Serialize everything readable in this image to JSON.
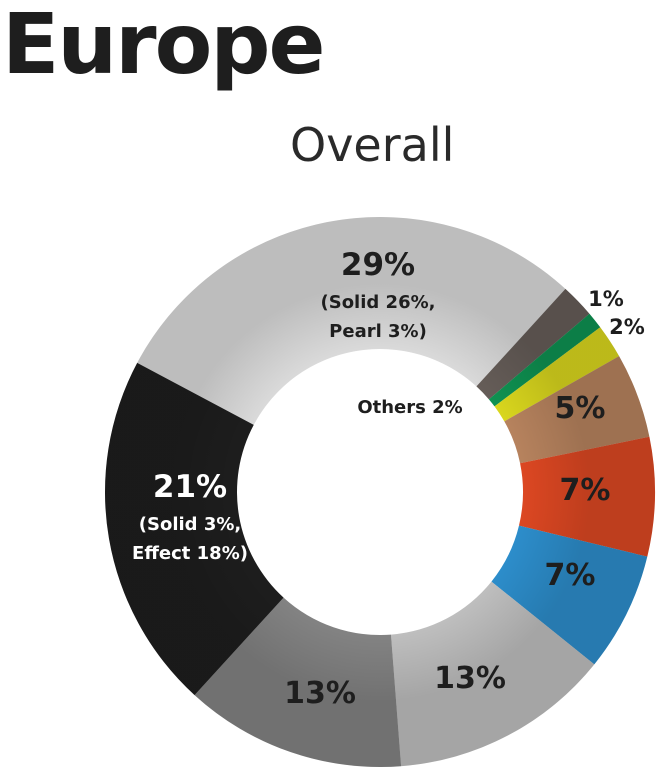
{
  "title": "Europe",
  "subtitle": "Overall",
  "chart_data": {
    "type": "pie",
    "title": "Europe",
    "subtitle": "Overall",
    "series": [
      {
        "label": "29%",
        "sublines": [
          "(Solid 26%,",
          "Pearl 3%)"
        ],
        "value": 29,
        "color": "#e6e6e6",
        "text_color": "#1e1e1e"
      },
      {
        "label": "Others 2%",
        "sublines": [],
        "value": 2,
        "color": "#6b625d",
        "text_color": "#1e1e1e"
      },
      {
        "label": "1%",
        "sublines": [],
        "value": 1,
        "color": "#0f9a56",
        "text_color": "#1e1e1e"
      },
      {
        "label": "2%",
        "sublines": [],
        "value": 2,
        "color": "#e5e21f",
        "text_color": "#1e1e1e"
      },
      {
        "label": "5%",
        "sublines": [],
        "value": 5,
        "color": "#c18a63",
        "text_color": "#1e1e1e"
      },
      {
        "label": "7%",
        "sublines": [],
        "value": 7,
        "color": "#e84b24",
        "text_color": "#1e1e1e"
      },
      {
        "label": "7%",
        "sublines": [],
        "value": 7,
        "color": "#2f95d6",
        "text_color": "#1e1e1e"
      },
      {
        "label": "13%",
        "sublines": [],
        "value": 13,
        "color": "#c9c9c9",
        "text_color": "#1e1e1e"
      },
      {
        "label": "13%",
        "sublines": [],
        "value": 13,
        "color": "#8a8a8a",
        "text_color": "#1e1e1e"
      },
      {
        "label": "21%",
        "sublines": [
          "(Solid 3%,",
          "Effect 18%)"
        ],
        "value": 21,
        "color": "#1f1f1f",
        "text_color": "#ffffff"
      }
    ]
  }
}
